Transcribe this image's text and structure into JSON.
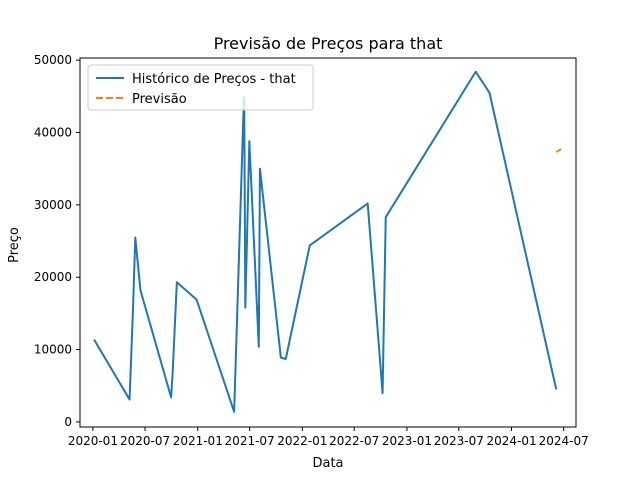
{
  "chart_data": {
    "type": "line",
    "title": "Previsão de Preços para that",
    "xlabel": "Data",
    "ylabel": "Preço",
    "x_tick_labels": [
      "2020-01",
      "2020-07",
      "2021-01",
      "2021-07",
      "2022-01",
      "2022-07",
      "2023-01",
      "2023-07",
      "2024-01",
      "2024-07"
    ],
    "y_tick_labels": [
      "0",
      "10000",
      "20000",
      "30000",
      "40000",
      "50000"
    ],
    "ylim": [
      -700,
      50300
    ],
    "xlim": [
      "2019-11-17",
      "2024-08-13"
    ],
    "grid": false,
    "legend_position": "top-left",
    "series": [
      {
        "name": "Histórico de Preços - that",
        "color": "#1f77b4",
        "style": "solid",
        "points": [
          [
            "2020-01-05",
            11400
          ],
          [
            "2020-05-08",
            3100
          ],
          [
            "2020-05-20",
            15600
          ],
          [
            "2020-05-28",
            25500
          ],
          [
            "2020-06-15",
            18200
          ],
          [
            "2020-09-30",
            3400
          ],
          [
            "2020-10-05",
            6500
          ],
          [
            "2020-10-20",
            19300
          ],
          [
            "2020-12-28",
            16900
          ],
          [
            "2021-05-08",
            1400
          ],
          [
            "2021-06-10",
            43400
          ],
          [
            "2021-06-12",
            44900
          ],
          [
            "2021-06-16",
            15800
          ],
          [
            "2021-06-30",
            38800
          ],
          [
            "2021-08-02",
            10400
          ],
          [
            "2021-08-06",
            35000
          ],
          [
            "2021-10-18",
            8900
          ],
          [
            "2021-11-04",
            8700
          ],
          [
            "2022-01-27",
            24400
          ],
          [
            "2022-08-17",
            30200
          ],
          [
            "2022-10-08",
            4000
          ],
          [
            "2022-10-19",
            28300
          ],
          [
            "2023-08-29",
            48400
          ],
          [
            "2023-10-16",
            45500
          ],
          [
            "2024-06-05",
            4500
          ]
        ]
      },
      {
        "name": "Previsão",
        "color": "#ff7f0e",
        "style": "dashed",
        "points": [
          [
            "2024-06-05",
            37300
          ],
          [
            "2024-06-22",
            37700
          ]
        ]
      }
    ]
  }
}
